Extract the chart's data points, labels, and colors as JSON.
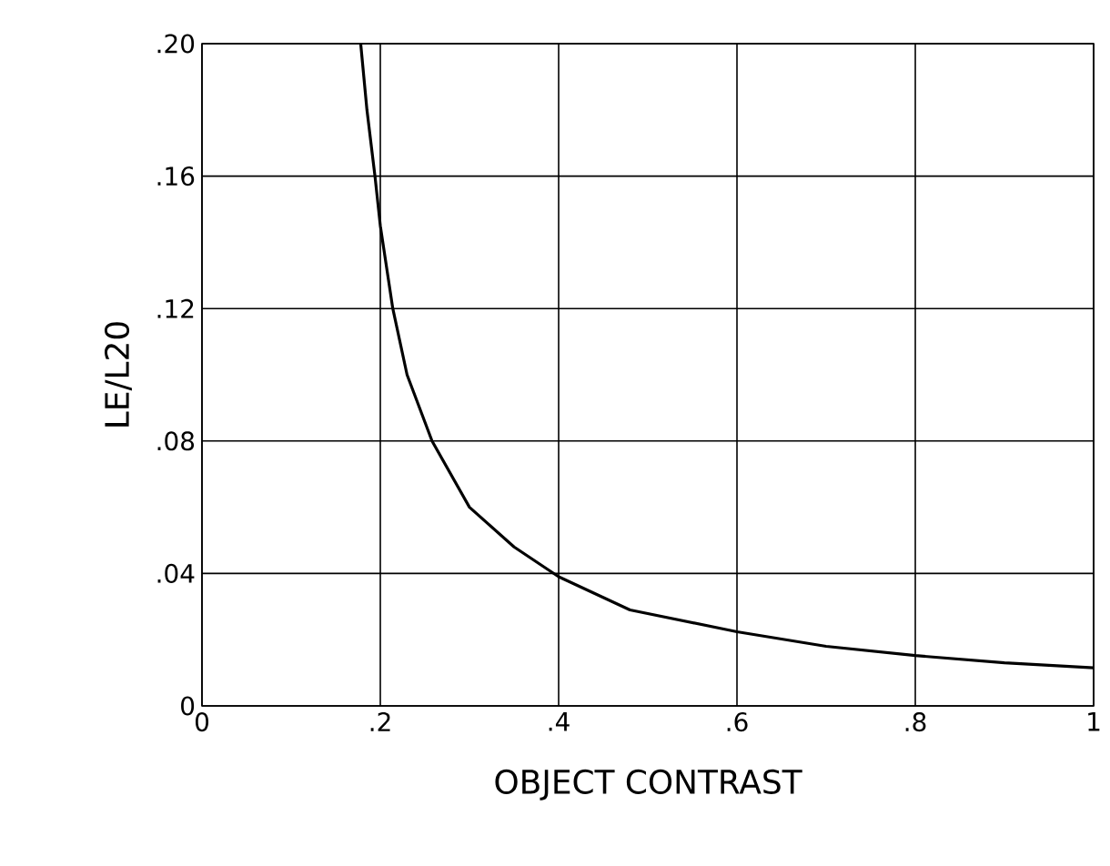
{
  "chart_data": {
    "type": "line",
    "xlabel": "OBJECT CONTRAST",
    "ylabel": "LE/L20",
    "x": [
      0.178,
      0.185,
      0.194,
      0.2,
      0.214,
      0.23,
      0.258,
      0.3,
      0.35,
      0.4,
      0.48,
      0.6,
      0.7,
      0.8,
      0.9,
      1.0
    ],
    "series": [
      {
        "color": "#000000",
        "values": [
          0.2,
          0.18,
          0.16,
          0.145,
          0.12,
          0.1,
          0.08,
          0.06,
          0.048,
          0.039,
          0.029,
          0.0224,
          0.018,
          0.0152,
          0.013,
          0.0115
        ]
      }
    ],
    "xlim": [
      0,
      1
    ],
    "ylim": [
      0,
      0.2
    ],
    "xticks": [
      0,
      {
        "value": 0.2,
        "label": ".2"
      },
      {
        "value": 0.4,
        "label": ".4"
      },
      {
        "value": 0.6,
        "label": ".6"
      },
      {
        "value": 0.8,
        "label": ".8"
      },
      1
    ],
    "yticks": [
      0,
      {
        "value": 0.04,
        "label": ".04"
      },
      {
        "value": 0.08,
        "label": ".08"
      },
      {
        "value": 0.12,
        "label": ".12"
      },
      {
        "value": 0.16,
        "label": ".16"
      },
      {
        "value": 0.2,
        "label": ".20"
      }
    ],
    "grid": true,
    "marker": "none",
    "line_style": "solid"
  }
}
